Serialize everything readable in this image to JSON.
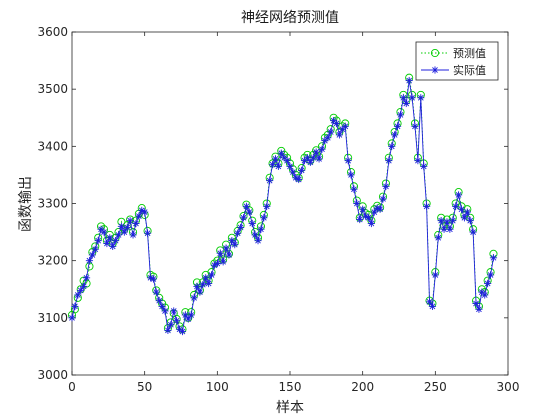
{
  "chart_data": {
    "type": "line",
    "title": "神经网络预测值",
    "xlabel": "样本",
    "ylabel": "函数输出",
    "xlim": [
      0,
      300
    ],
    "ylim": [
      3000,
      3600
    ],
    "xticks": [
      "0",
      "50",
      "100",
      "150",
      "200",
      "250",
      "300"
    ],
    "yticks": [
      "3000",
      "3100",
      "3200",
      "3300",
      "3400",
      "3500",
      "3600"
    ],
    "grid": false,
    "legend_position": "top-right",
    "x_step": 2,
    "series": [
      {
        "name": "预测值",
        "color": "#00cc00",
        "line_style": "dotted",
        "marker": "circle",
        "values": [
          3105,
          3115,
          3135,
          3150,
          3165,
          3160,
          3190,
          3215,
          3225,
          3240,
          3260,
          3255,
          3235,
          3245,
          3230,
          3240,
          3250,
          3268,
          3255,
          3262,
          3272,
          3250,
          3270,
          3282,
          3292,
          3280,
          3252,
          3175,
          3172,
          3148,
          3135,
          3125,
          3118,
          3082,
          3092,
          3108,
          3098,
          3085,
          3080,
          3110,
          3100,
          3110,
          3140,
          3162,
          3148,
          3162,
          3175,
          3165,
          3180,
          3195,
          3200,
          3218,
          3202,
          3228,
          3212,
          3240,
          3232,
          3252,
          3262,
          3278,
          3298,
          3288,
          3270,
          3250,
          3240,
          3260,
          3280,
          3300,
          3345,
          3370,
          3382,
          3370,
          3392,
          3385,
          3380,
          3370,
          3360,
          3350,
          3345,
          3362,
          3380,
          3385,
          3375,
          3385,
          3393,
          3382,
          3400,
          3415,
          3420,
          3430,
          3450,
          3445,
          3425,
          3435,
          3440,
          3380,
          3355,
          3330,
          3305,
          3275,
          3295,
          3283,
          3280,
          3270,
          3290,
          3296,
          3293,
          3312,
          3335,
          3380,
          3405,
          3425,
          3440,
          3460,
          3490,
          3480,
          3520,
          3490,
          3440,
          3380,
          3490,
          3370,
          3300,
          3130,
          3125,
          3180,
          3245,
          3275,
          3260,
          3272,
          3260,
          3275,
          3300,
          3320,
          3295,
          3280,
          3290,
          3275,
          3255,
          3130,
          3120,
          3150,
          3145,
          3165,
          3180,
          3212
        ]
      },
      {
        "name": "实际值",
        "color": "#1f1fdd",
        "line_style": "solid",
        "marker": "asterisk",
        "values": [
          3100,
          3120,
          3140,
          3148,
          3155,
          3170,
          3200,
          3210,
          3220,
          3235,
          3255,
          3250,
          3230,
          3240,
          3225,
          3235,
          3245,
          3260,
          3250,
          3258,
          3270,
          3245,
          3265,
          3278,
          3288,
          3285,
          3248,
          3170,
          3168,
          3145,
          3130,
          3120,
          3112,
          3078,
          3088,
          3112,
          3095,
          3080,
          3076,
          3105,
          3098,
          3105,
          3135,
          3155,
          3145,
          3158,
          3170,
          3160,
          3175,
          3192,
          3195,
          3213,
          3198,
          3222,
          3210,
          3235,
          3228,
          3248,
          3258,
          3275,
          3295,
          3285,
          3265,
          3245,
          3235,
          3255,
          3275,
          3295,
          3340,
          3368,
          3378,
          3365,
          3388,
          3380,
          3375,
          3365,
          3355,
          3345,
          3342,
          3358,
          3375,
          3380,
          3372,
          3380,
          3390,
          3378,
          3395,
          3410,
          3415,
          3425,
          3445,
          3440,
          3420,
          3430,
          3435,
          3375,
          3350,
          3325,
          3300,
          3272,
          3290,
          3278,
          3275,
          3265,
          3285,
          3292,
          3290,
          3308,
          3330,
          3375,
          3400,
          3420,
          3435,
          3455,
          3485,
          3475,
          3515,
          3485,
          3435,
          3375,
          3485,
          3365,
          3295,
          3128,
          3120,
          3175,
          3240,
          3270,
          3255,
          3268,
          3255,
          3270,
          3295,
          3315,
          3290,
          3275,
          3285,
          3270,
          3250,
          3125,
          3115,
          3145,
          3140,
          3160,
          3175,
          3205
        ]
      }
    ]
  }
}
